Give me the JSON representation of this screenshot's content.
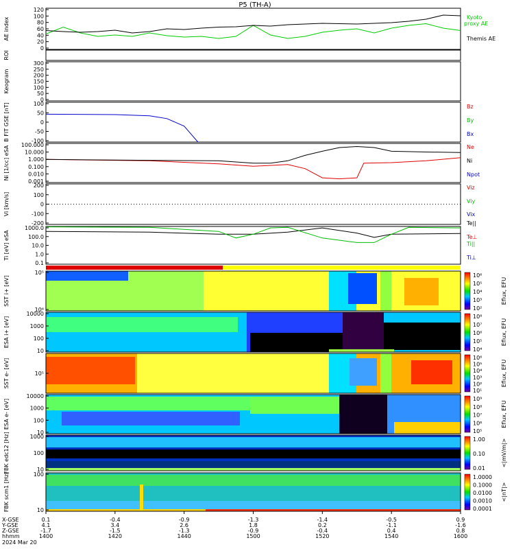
{
  "title": "P5 (TH-A)",
  "date_label": "2024 Mar 20",
  "chart_data": [
    {
      "type": "line",
      "ylabel": "AE index",
      "ylim": [
        0,
        120
      ],
      "yticks": [
        "0",
        "20",
        "40",
        "60",
        "80",
        "100",
        "120"
      ],
      "x": [
        1400,
        1405,
        1410,
        1415,
        1420,
        1425,
        1430,
        1435,
        1440,
        1445,
        1450,
        1455,
        1500,
        1505,
        1510,
        1515,
        1520,
        1525,
        1530,
        1535,
        1540,
        1545,
        1550,
        1555,
        1600
      ],
      "series": [
        {
          "name": "Kyoto proxy AE",
          "color": "#00cc00",
          "values": [
            45,
            65,
            48,
            38,
            42,
            38,
            48,
            40,
            36,
            38,
            32,
            38,
            70,
            42,
            32,
            38,
            50,
            56,
            60,
            48,
            62,
            70,
            75,
            62,
            55
          ]
        },
        {
          "name": "Themis AE",
          "color": "#000000",
          "values": [
            55,
            52,
            50,
            52,
            56,
            48,
            52,
            60,
            58,
            62,
            65,
            66,
            70,
            68,
            72,
            74,
            76,
            75,
            74,
            76,
            78,
            82,
            88,
            100,
            98
          ]
        }
      ],
      "legend": [
        "Kyoto proxy AE",
        "Themis AE"
      ]
    },
    {
      "type": "heatmap",
      "ylabel": "ROI"
    },
    {
      "type": "heatmap",
      "ylabel": "Keogram",
      "ylim": [
        0,
        300
      ],
      "yticks": [
        "0",
        "50",
        "100",
        "150",
        "200",
        "250",
        "300"
      ]
    },
    {
      "type": "line",
      "ylabel": "B FIT GSE [nT]",
      "ylim": [
        -100,
        100
      ],
      "yticks": [
        "-100",
        "-50",
        "0",
        "50",
        "100"
      ],
      "series": [
        {
          "name": "Bz",
          "color": "#dd0000"
        },
        {
          "name": "By",
          "color": "#00bb00"
        },
        {
          "name": "Bx",
          "color": "#0000cc",
          "x": [
            1400,
            1420,
            1430,
            1435,
            1440,
            1442,
            1444
          ],
          "values": [
            40,
            38,
            32,
            18,
            -20,
            -60,
            -100
          ]
        }
      ]
    },
    {
      "type": "line",
      "ylabel": "Ni [1/cc] eSA",
      "scale": "log",
      "ylim": [
        0.001,
        100
      ],
      "yticks": [
        "0.001",
        "0.010",
        "0.100",
        "1.000",
        "10.000",
        "100.000"
      ],
      "series": [
        {
          "name": "Ne",
          "color": "#dd0000",
          "x": [
            1400,
            1430,
            1450,
            1500,
            1510,
            1515,
            1520,
            1525,
            1530,
            1532,
            1540,
            1550,
            1600
          ],
          "values": [
            0.9,
            0.6,
            0.25,
            0.12,
            0.2,
            0.06,
            0.004,
            0.003,
            0.004,
            0.3,
            0.35,
            0.6,
            1.5
          ]
        },
        {
          "name": "Ni",
          "color": "#000000",
          "x": [
            1400,
            1430,
            1450,
            1500,
            1505,
            1510,
            1515,
            1520,
            1525,
            1530,
            1535,
            1540,
            1550,
            1600
          ],
          "values": [
            0.9,
            0.7,
            0.6,
            0.3,
            0.3,
            0.6,
            3,
            10,
            30,
            40,
            30,
            10,
            8,
            7
          ]
        },
        {
          "name": "Npot",
          "color": "#0000cc"
        }
      ]
    },
    {
      "type": "line",
      "ylabel": "Vi [km/s]",
      "ylim": [
        -300,
        300
      ],
      "yticks": [
        "-200",
        "-100",
        "0",
        "100",
        "200"
      ],
      "series": [
        {
          "name": "Viz",
          "color": "#dd0000"
        },
        {
          "name": "Viy",
          "color": "#00bb00"
        },
        {
          "name": "Vix",
          "color": "#0000cc"
        }
      ]
    },
    {
      "type": "line",
      "ylabel": "Ti [eV] eSA",
      "scale": "log",
      "ylim": [
        0.1,
        1000
      ],
      "yticks": [
        "0.1",
        "1.0",
        "10.0",
        "100.0",
        "1000.0"
      ],
      "series": [
        {
          "name": "Te||",
          "color": "#000000",
          "x": [
            1400,
            1430,
            1450,
            1500,
            1510,
            1520,
            1530,
            1535,
            1540,
            1600
          ],
          "values": [
            300,
            250,
            150,
            150,
            250,
            700,
            200,
            70,
            150,
            180
          ]
        },
        {
          "name": "Te⊥",
          "color": "#dd0000"
        },
        {
          "name": "Ti||",
          "color": "#00bb00",
          "x": [
            1400,
            1430,
            1450,
            1455,
            1500,
            1505,
            1510,
            1520,
            1530,
            1535,
            1540,
            1545,
            1600
          ],
          "values": [
            900,
            800,
            300,
            60,
            150,
            700,
            800,
            60,
            20,
            20,
            150,
            800,
            700
          ]
        },
        {
          "name": "Ti⊥",
          "color": "#0000cc"
        }
      ]
    },
    {
      "type": "heatmap",
      "ylabel": "SST i+ [eV]",
      "yticks": [
        "10⁶",
        "10⁵"
      ],
      "zlabel": "Eflux, EFU",
      "zticks": [
        "10²",
        "10³",
        "10⁴",
        "10⁵",
        "10⁶"
      ]
    },
    {
      "type": "heatmap",
      "ylabel": "ESA i+ [eV]",
      "yticks": [
        "10",
        "100",
        "1000",
        "10000"
      ],
      "zlabel": "Eflux, EFU",
      "zticks": [
        "10⁴",
        "10⁵",
        "10⁶",
        "10⁷",
        "10⁸"
      ]
    },
    {
      "type": "heatmap",
      "ylabel": "SST e- [eV]",
      "yticks": [
        "10⁵"
      ],
      "zlabel": "Eflux, EFU",
      "zticks": [
        "10¹",
        "10²",
        "10³",
        "10⁴",
        "10⁵",
        "10⁶"
      ]
    },
    {
      "type": "heatmap",
      "ylabel": "ESA e- [eV]",
      "yticks": [
        "10",
        "100",
        "1000",
        "10000"
      ],
      "zlabel": "Eflux, EFU",
      "zticks": [
        "10⁵",
        "10⁶",
        "10⁷",
        "10⁸",
        "10⁹"
      ]
    },
    {
      "type": "heatmap",
      "ylabel": "FBK edc12 [Hz]",
      "yticks": [
        "10",
        "100",
        "1000"
      ],
      "zlabel": "<|mV/m|>",
      "zticks": [
        "0.01",
        "0.10",
        "1.00"
      ]
    },
    {
      "type": "heatmap",
      "ylabel": "FBK scm1 [Hz]",
      "yticks": [
        "10",
        "100"
      ],
      "zlabel": "<|nT|>",
      "zticks": [
        "0.0001",
        "0.0010",
        "0.0100",
        "0.1000",
        "1.0000"
      ]
    }
  ],
  "legend_labels": {
    "ae": [
      "Kyoto",
      "proxy AE",
      "Themis AE"
    ],
    "b": [
      "Bz",
      "By",
      "Bx"
    ],
    "n": [
      "Ne",
      "Ni",
      "Npot"
    ],
    "v": [
      "Viz",
      "Viy",
      "Vix",
      "Te||"
    ],
    "t": [
      "Te⊥",
      "Ti||",
      "Ti⊥"
    ]
  },
  "xaxis": {
    "row_labels": [
      "X-GSE",
      "Y-GSE",
      "Z-GSE",
      "hhmm"
    ],
    "columns": [
      {
        "x": 1400,
        "vals": [
          "0.1",
          "4.1",
          "-1.7",
          "1400"
        ]
      },
      {
        "x": 1420,
        "vals": [
          "-0.4",
          "3.4",
          "-1.5",
          "1420"
        ]
      },
      {
        "x": 1440,
        "vals": [
          "-0.9",
          "2.6",
          "-1.3",
          "1440"
        ]
      },
      {
        "x": 1500,
        "vals": [
          "-1.3",
          "1.8",
          "-0.9",
          "1500"
        ]
      },
      {
        "x": 1520,
        "vals": [
          "-1.4",
          "0.2",
          "-0.4",
          "1520"
        ]
      },
      {
        "x": 1540,
        "vals": [
          "-0.5",
          "-1.1",
          "0.4",
          "1540"
        ]
      },
      {
        "x": 1600,
        "vals": [
          "0.9",
          "-1.6",
          "0.8",
          "1600"
        ]
      }
    ]
  }
}
